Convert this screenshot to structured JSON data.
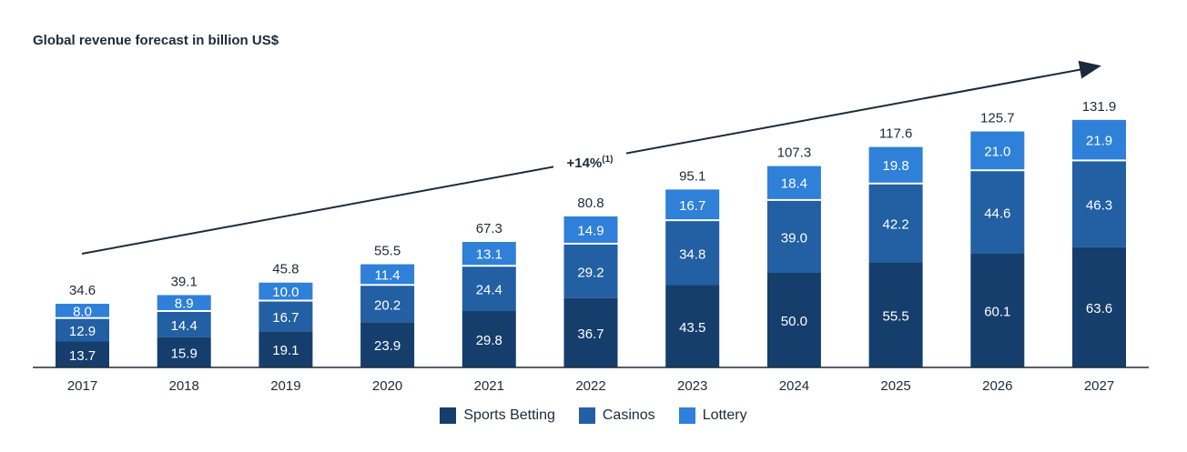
{
  "colors": {
    "sports": "#163e6c",
    "casinos": "#225fa3",
    "lottery": "#2f80d8",
    "text_dark": "#1c2b3a",
    "axis": "#1c2b3a"
  },
  "chart_data": {
    "type": "bar",
    "stacked": true,
    "title": "Global revenue forecast in billion US$",
    "categories": [
      "2017",
      "2018",
      "2019",
      "2020",
      "2021",
      "2022",
      "2023",
      "2024",
      "2025",
      "2026",
      "2027"
    ],
    "series": [
      {
        "name": "Sports Betting",
        "color_key": "sports",
        "values": [
          13.7,
          15.9,
          19.1,
          23.9,
          29.8,
          36.7,
          43.5,
          50.0,
          55.5,
          60.1,
          63.6
        ]
      },
      {
        "name": "Casinos",
        "color_key": "casinos",
        "values": [
          12.9,
          14.4,
          16.7,
          20.2,
          24.4,
          29.2,
          34.8,
          39.0,
          42.2,
          44.6,
          46.3
        ]
      },
      {
        "name": "Lottery",
        "color_key": "lottery",
        "values": [
          8.0,
          8.9,
          10.0,
          11.4,
          13.1,
          14.9,
          16.7,
          18.4,
          19.8,
          21.0,
          21.9
        ]
      }
    ],
    "totals": [
      34.6,
      39.1,
      45.8,
      55.5,
      67.3,
      80.8,
      95.1,
      107.3,
      117.6,
      125.7,
      131.9
    ],
    "annotation": {
      "text": "+14%",
      "superscript": "(1)"
    },
    "legend": [
      "Sports Betting",
      "Casinos",
      "Lottery"
    ],
    "legend_position": "bottom-center",
    "grid": false
  }
}
